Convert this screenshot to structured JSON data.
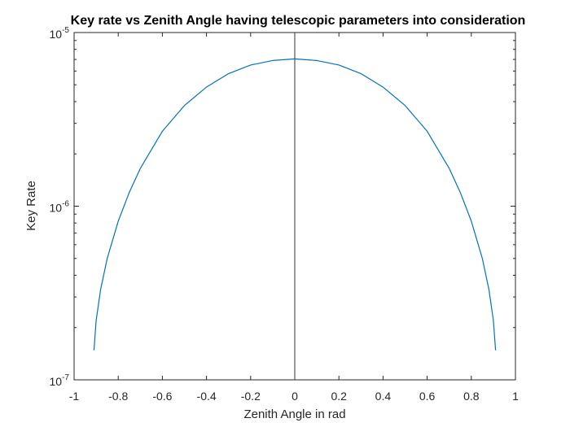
{
  "chart_data": {
    "type": "line",
    "title": "Key rate vs Zenith Angle having telescopic parameters into consideration",
    "xlabel": "Zenith Angle in rad",
    "ylabel": "Key Rate",
    "xlim": [
      -1,
      1
    ],
    "ylim": [
      1e-07,
      1e-05
    ],
    "yscale": "log",
    "grid": false,
    "xticks": [
      -1,
      -0.8,
      -0.6,
      -0.4,
      -0.2,
      0,
      0.2,
      0.4,
      0.6,
      0.8,
      1
    ],
    "xtick_labels": [
      "-1",
      "-0.8",
      "-0.6",
      "-0.4",
      "-0.2",
      "0",
      "0.2",
      "0.4",
      "0.6",
      "0.8",
      "1"
    ],
    "yticks": [
      1e-07,
      1e-06,
      1e-05
    ],
    "ytick_labels": [
      {
        "base": "10",
        "exp": "-7"
      },
      {
        "base": "10",
        "exp": "-6"
      },
      {
        "base": "10",
        "exp": "-5"
      }
    ],
    "reference_line": {
      "x": 0,
      "color": "#333333"
    },
    "series": [
      {
        "color": "#0072BD",
        "x": [
          -0.91,
          -0.9,
          -0.88,
          -0.85,
          -0.8,
          -0.75,
          -0.7,
          -0.6,
          -0.5,
          -0.4,
          -0.3,
          -0.2,
          -0.1,
          0,
          0.1,
          0.2,
          0.3,
          0.4,
          0.5,
          0.6,
          0.7,
          0.75,
          0.8,
          0.85,
          0.88,
          0.9,
          0.91
        ],
        "y": [
          1.48e-07,
          2.2e-07,
          3.3e-07,
          5e-07,
          8.2e-07,
          1.2e-06,
          1.65e-06,
          2.7e-06,
          3.8e-06,
          4.85e-06,
          5.8e-06,
          6.5e-06,
          6.9e-06,
          7.05e-06,
          6.9e-06,
          6.5e-06,
          5.8e-06,
          4.85e-06,
          3.8e-06,
          2.7e-06,
          1.65e-06,
          1.2e-06,
          8.2e-07,
          5e-07,
          3.3e-07,
          2.2e-07,
          1.48e-07
        ]
      }
    ]
  }
}
